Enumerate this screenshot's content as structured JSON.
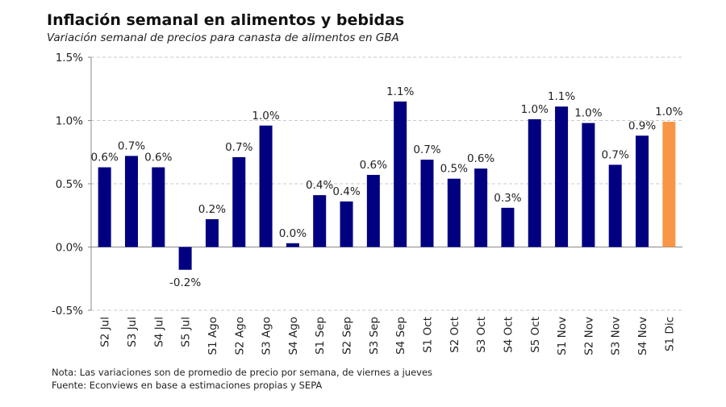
{
  "chart_data": {
    "type": "bar",
    "title": "Inflación semanal en alimentos y bebidas",
    "subtitle": "Variación semanal de precios para canasta de alimentos en GBA",
    "categories": [
      "S2 Jul",
      "S3 Jul",
      "S4 Jul",
      "S5 Jul",
      "S1 Ago",
      "S2 Ago",
      "S3 Ago",
      "S4 Ago",
      "S1 Sep",
      "S2 Sep",
      "S3 Sep",
      "S4 Sep",
      "S1 Oct",
      "S2 Oct",
      "S3 Oct",
      "S4 Oct",
      "S5 Oct",
      "S1 Nov",
      "S2 Nov",
      "S3 Nov",
      "S4 Nov",
      "S1 Dic"
    ],
    "values": [
      0.63,
      0.72,
      0.63,
      -0.18,
      0.22,
      0.71,
      0.96,
      0.03,
      0.41,
      0.36,
      0.57,
      1.15,
      0.69,
      0.54,
      0.62,
      0.31,
      1.01,
      1.11,
      0.98,
      0.65,
      0.88,
      0.99
    ],
    "data_labels": [
      "0.6%",
      "0.7%",
      "0.6%",
      "-0.2%",
      "0.2%",
      "0.7%",
      "1.0%",
      "0.0%",
      "0.4%",
      "0.4%",
      "0.6%",
      "1.1%",
      "0.7%",
      "0.5%",
      "0.6%",
      "0.3%",
      "1.0%",
      "1.1%",
      "1.0%",
      "0.7%",
      "0.9%",
      "1.0%"
    ],
    "ylim": [
      -0.5,
      1.5
    ],
    "yticks": [
      -0.5,
      0.0,
      0.5,
      1.0,
      1.5
    ],
    "ytick_labels": [
      "-0.5%",
      "0.0%",
      "0.5%",
      "1.0%",
      "1.5%"
    ],
    "grid": true,
    "colors": {
      "default": "#000080",
      "highlight": "#F79646"
    },
    "highlight_index": 21,
    "xlabel": "",
    "ylabel": ""
  },
  "notes": {
    "nota": "Nota: Las variaciones son de promedio de precio por semana, de viernes a jueves",
    "fuente": "Fuente: Econviews en base a estimaciones propias  y SEPA"
  }
}
